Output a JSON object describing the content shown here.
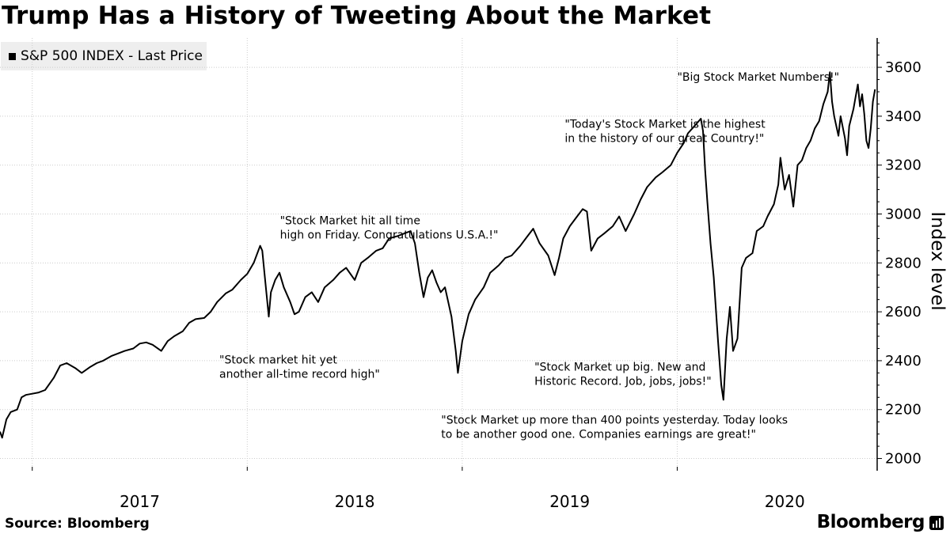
{
  "header": {
    "title": "Trump Has a History of Tweeting About the Market"
  },
  "legend": {
    "label": "S&P 500 INDEX - Last Price"
  },
  "footer": {
    "source": "Source: Bloomberg",
    "brand": "Bloomberg"
  },
  "colors": {
    "line": "#000000",
    "grid": "#cccccc",
    "legend_bg": "#eeeeee"
  },
  "chart_data": {
    "type": "line",
    "title": "Trump Has a History of Tweeting About the Market",
    "ylabel": "Index level",
    "xlabel": "",
    "ylim": [
      1950,
      3720
    ],
    "xlim": [
      2016.85,
      2020.93
    ],
    "yticks": [
      2000,
      2200,
      2400,
      2600,
      2800,
      3000,
      3200,
      3400,
      3600
    ],
    "xticks": [
      {
        "x": 2017.0,
        "label": "2017"
      },
      {
        "x": 2018.0,
        "label": "2018"
      },
      {
        "x": 2019.0,
        "label": "2019"
      },
      {
        "x": 2020.0,
        "label": "2020"
      }
    ],
    "year_boundaries": [
      2017.0,
      2018.0,
      2019.0,
      2020.0
    ],
    "grid": true,
    "series": [
      {
        "name": "S&P 500 INDEX - Last Price",
        "points": [
          [
            2016.85,
            2110
          ],
          [
            2016.86,
            2085
          ],
          [
            2016.88,
            2160
          ],
          [
            2016.9,
            2190
          ],
          [
            2016.93,
            2200
          ],
          [
            2016.95,
            2250
          ],
          [
            2016.97,
            2260
          ],
          [
            2017.0,
            2265
          ],
          [
            2017.03,
            2270
          ],
          [
            2017.06,
            2280
          ],
          [
            2017.1,
            2330
          ],
          [
            2017.13,
            2380
          ],
          [
            2017.16,
            2390
          ],
          [
            2017.2,
            2370
          ],
          [
            2017.23,
            2350
          ],
          [
            2017.27,
            2375
          ],
          [
            2017.3,
            2390
          ],
          [
            2017.33,
            2400
          ],
          [
            2017.37,
            2420
          ],
          [
            2017.4,
            2430
          ],
          [
            2017.43,
            2440
          ],
          [
            2017.47,
            2450
          ],
          [
            2017.5,
            2470
          ],
          [
            2017.53,
            2475
          ],
          [
            2017.56,
            2465
          ],
          [
            2017.6,
            2440
          ],
          [
            2017.63,
            2480
          ],
          [
            2017.66,
            2500
          ],
          [
            2017.7,
            2520
          ],
          [
            2017.73,
            2555
          ],
          [
            2017.76,
            2570
          ],
          [
            2017.8,
            2575
          ],
          [
            2017.83,
            2600
          ],
          [
            2017.86,
            2640
          ],
          [
            2017.9,
            2675
          ],
          [
            2017.93,
            2690
          ],
          [
            2017.97,
            2730
          ],
          [
            2018.0,
            2755
          ],
          [
            2018.03,
            2800
          ],
          [
            2018.06,
            2870
          ],
          [
            2018.07,
            2850
          ],
          [
            2018.08,
            2760
          ],
          [
            2018.1,
            2580
          ],
          [
            2018.11,
            2680
          ],
          [
            2018.13,
            2730
          ],
          [
            2018.15,
            2760
          ],
          [
            2018.17,
            2700
          ],
          [
            2018.2,
            2640
          ],
          [
            2018.22,
            2590
          ],
          [
            2018.24,
            2600
          ],
          [
            2018.27,
            2660
          ],
          [
            2018.3,
            2680
          ],
          [
            2018.33,
            2640
          ],
          [
            2018.36,
            2700
          ],
          [
            2018.4,
            2730
          ],
          [
            2018.43,
            2760
          ],
          [
            2018.46,
            2780
          ],
          [
            2018.5,
            2730
          ],
          [
            2018.53,
            2800
          ],
          [
            2018.56,
            2820
          ],
          [
            2018.6,
            2850
          ],
          [
            2018.63,
            2860
          ],
          [
            2018.66,
            2900
          ],
          [
            2018.7,
            2910
          ],
          [
            2018.73,
            2920
          ],
          [
            2018.76,
            2930
          ],
          [
            2018.78,
            2880
          ],
          [
            2018.8,
            2760
          ],
          [
            2018.82,
            2660
          ],
          [
            2018.84,
            2740
          ],
          [
            2018.86,
            2770
          ],
          [
            2018.88,
            2720
          ],
          [
            2018.9,
            2680
          ],
          [
            2018.92,
            2700
          ],
          [
            2018.95,
            2580
          ],
          [
            2018.97,
            2440
          ],
          [
            2018.98,
            2350
          ],
          [
            2019.0,
            2480
          ],
          [
            2019.03,
            2590
          ],
          [
            2019.06,
            2650
          ],
          [
            2019.1,
            2700
          ],
          [
            2019.13,
            2760
          ],
          [
            2019.17,
            2790
          ],
          [
            2019.2,
            2820
          ],
          [
            2019.23,
            2830
          ],
          [
            2019.27,
            2870
          ],
          [
            2019.3,
            2905
          ],
          [
            2019.33,
            2940
          ],
          [
            2019.36,
            2880
          ],
          [
            2019.4,
            2830
          ],
          [
            2019.43,
            2750
          ],
          [
            2019.45,
            2820
          ],
          [
            2019.47,
            2900
          ],
          [
            2019.5,
            2950
          ],
          [
            2019.53,
            2985
          ],
          [
            2019.56,
            3020
          ],
          [
            2019.58,
            3010
          ],
          [
            2019.6,
            2850
          ],
          [
            2019.63,
            2900
          ],
          [
            2019.66,
            2920
          ],
          [
            2019.7,
            2950
          ],
          [
            2019.73,
            2990
          ],
          [
            2019.76,
            2930
          ],
          [
            2019.8,
            3000
          ],
          [
            2019.83,
            3060
          ],
          [
            2019.86,
            3110
          ],
          [
            2019.9,
            3150
          ],
          [
            2019.93,
            3170
          ],
          [
            2019.97,
            3200
          ],
          [
            2020.0,
            3250
          ],
          [
            2020.03,
            3290
          ],
          [
            2020.05,
            3330
          ],
          [
            2020.08,
            3360
          ],
          [
            2020.1,
            3380
          ],
          [
            2020.11,
            3390
          ],
          [
            2020.12,
            3340
          ],
          [
            2020.13,
            3180
          ],
          [
            2020.14,
            3050
          ],
          [
            2020.155,
            2880
          ],
          [
            2020.17,
            2740
          ],
          [
            2020.19,
            2480
          ],
          [
            2020.205,
            2300
          ],
          [
            2020.215,
            2240
          ],
          [
            2020.23,
            2490
          ],
          [
            2020.245,
            2620
          ],
          [
            2020.26,
            2440
          ],
          [
            2020.28,
            2490
          ],
          [
            2020.3,
            2780
          ],
          [
            2020.32,
            2820
          ],
          [
            2020.35,
            2840
          ],
          [
            2020.37,
            2930
          ],
          [
            2020.4,
            2950
          ],
          [
            2020.42,
            2990
          ],
          [
            2020.45,
            3040
          ],
          [
            2020.47,
            3120
          ],
          [
            2020.48,
            3230
          ],
          [
            2020.5,
            3100
          ],
          [
            2020.52,
            3160
          ],
          [
            2020.54,
            3030
          ],
          [
            2020.56,
            3200
          ],
          [
            2020.58,
            3220
          ],
          [
            2020.6,
            3270
          ],
          [
            2020.62,
            3300
          ],
          [
            2020.64,
            3350
          ],
          [
            2020.66,
            3380
          ],
          [
            2020.68,
            3450
          ],
          [
            2020.7,
            3500
          ],
          [
            2020.71,
            3580
          ],
          [
            2020.72,
            3460
          ],
          [
            2020.73,
            3400
          ],
          [
            2020.74,
            3360
          ],
          [
            2020.75,
            3320
          ],
          [
            2020.76,
            3400
          ],
          [
            2020.78,
            3310
          ],
          [
            2020.79,
            3240
          ],
          [
            2020.8,
            3360
          ],
          [
            2020.82,
            3430
          ],
          [
            2020.83,
            3480
          ],
          [
            2020.84,
            3530
          ],
          [
            2020.85,
            3440
          ],
          [
            2020.86,
            3490
          ],
          [
            2020.87,
            3410
          ],
          [
            2020.88,
            3300
          ],
          [
            2020.89,
            3270
          ],
          [
            2020.9,
            3350
          ],
          [
            2020.91,
            3460
          ],
          [
            2020.92,
            3510
          ]
        ]
      }
    ],
    "annotations": [
      {
        "x": 2017.87,
        "y": 2388,
        "lines": [
          "\"Stock market hit yet",
          "another all-time record high\""
        ]
      },
      {
        "x": 2018.152,
        "y": 2958,
        "lines": [
          "\"Stock Market hit all time",
          "high on Friday. Congratulations U.S.A.!\""
        ]
      },
      {
        "x": 2018.902,
        "y": 2142,
        "lines": [
          "\"Stock Market up more than 400 points yesterday. Today looks",
          "to be another good one. Companies earnings are great!\""
        ]
      },
      {
        "x": 2019.336,
        "y": 2359,
        "lines": [
          "\"Stock Market up big. New and",
          "Historic Record. Job, jobs, jobs!\""
        ]
      },
      {
        "x": 2019.477,
        "y": 3353,
        "lines": [
          "\"Today's Stock Market is the highest",
          "in the history of our great Country!\""
        ]
      },
      {
        "x": 2020.0,
        "y": 3545,
        "lines": [
          "\"Big Stock Market Numbers!\""
        ]
      }
    ]
  }
}
